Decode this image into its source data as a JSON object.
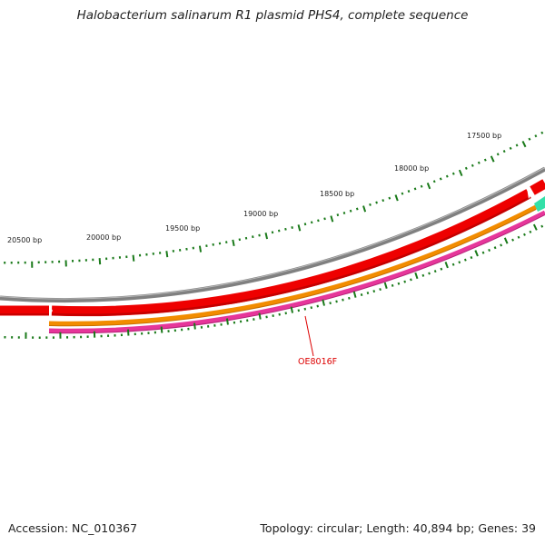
{
  "title": "Halobacterium salinarum R1 plasmid PHS4, complete sequence",
  "footer": {
    "accession": "Accession: NC_010367",
    "topology": "Topology: circular; Length: 40,894 bp; Genes: 39"
  },
  "scale": {
    "tick_labels": [
      "20500 bp",
      "20000 bp",
      "19500 bp",
      "19000 bp",
      "18500 bp",
      "18000 bp",
      "17500 bp"
    ]
  },
  "features": {
    "gene_label": "OE8016F"
  },
  "colors": {
    "tick": "#1a7a1a",
    "backbone": "#808080",
    "cds_red": "#ee0000",
    "orange": "#f28c00",
    "pink": "#e6369a",
    "teal": "#33e0a8",
    "label_red": "#dd0000"
  }
}
